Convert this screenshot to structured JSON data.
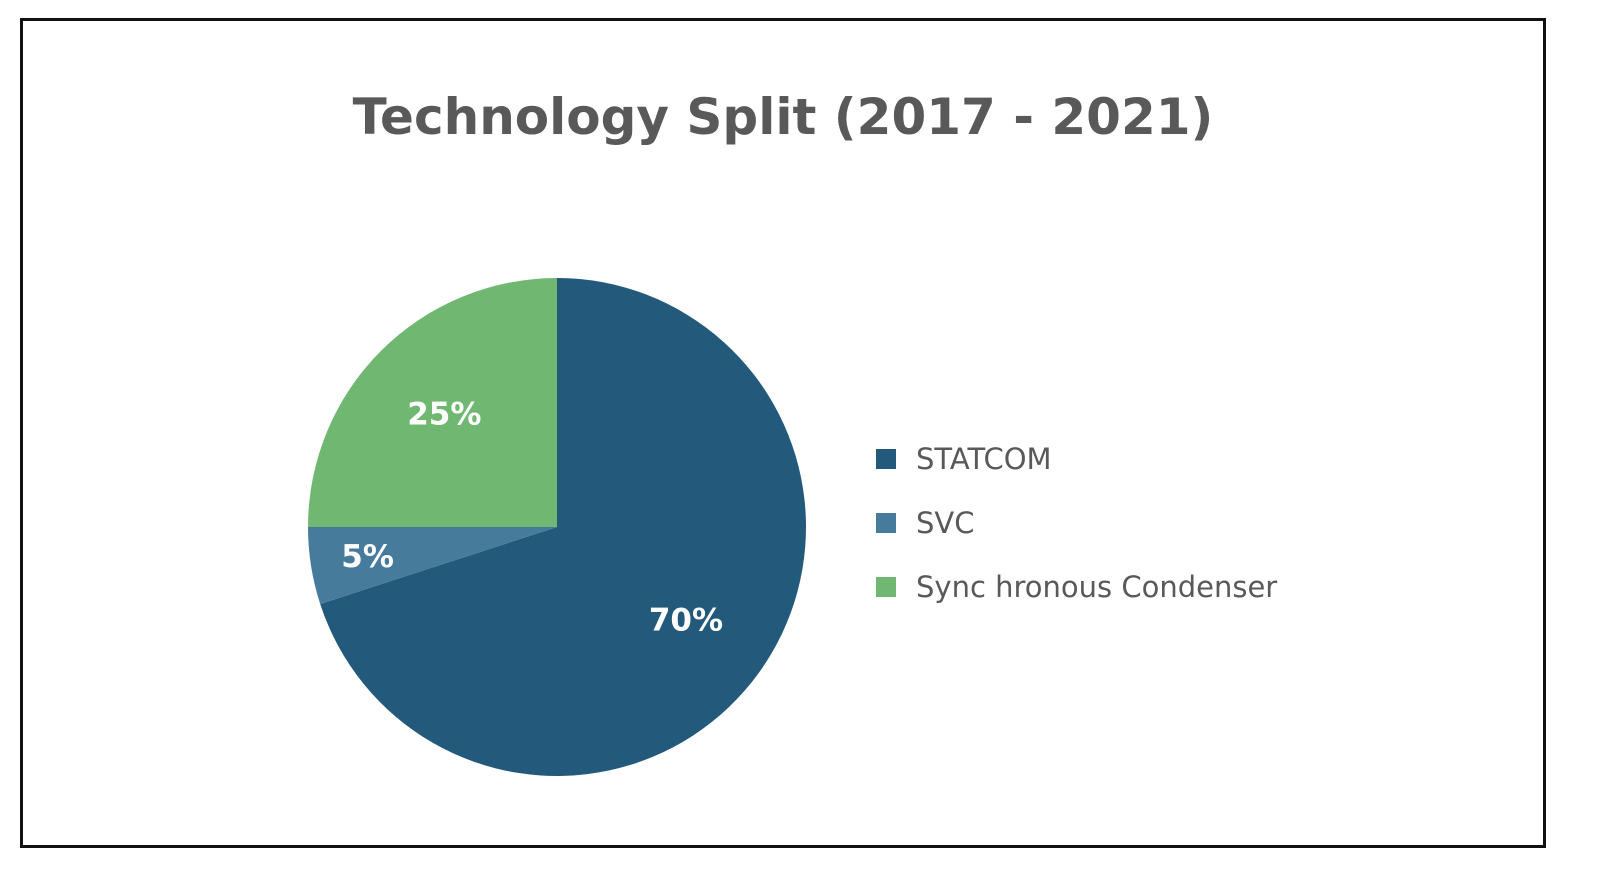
{
  "chart_data": {
    "type": "pie",
    "title": "Technology Split (2017 - 2021)",
    "categories": [
      "STATCOM",
      "SVC",
      "Sync hronous Condenser"
    ],
    "values": [
      70,
      5,
      25
    ],
    "data_labels": [
      "70%",
      "5%",
      "25%"
    ],
    "colors": [
      "#235a7b",
      "#467b9c",
      "#70b872"
    ],
    "legend_position": "right"
  }
}
